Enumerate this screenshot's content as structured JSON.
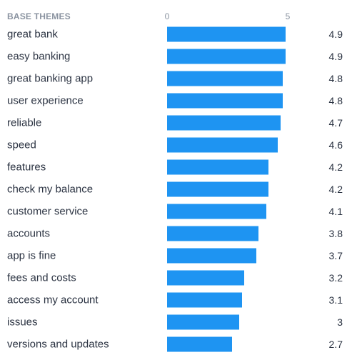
{
  "header": {
    "title": "BASE THEMES"
  },
  "colors": {
    "bar": "#1e94f2",
    "label": "#2b3342",
    "axis": "#8a93a0"
  },
  "chart_data": {
    "type": "bar",
    "orientation": "horizontal",
    "title": "BASE THEMES",
    "xlim": [
      0,
      5
    ],
    "ticks": [
      "0",
      "5"
    ],
    "categories": [
      "great bank",
      "easy banking",
      "great banking app",
      "user experience",
      "reliable",
      "speed",
      "features",
      "check my balance",
      "customer service",
      "accounts",
      "app is fine",
      "fees and costs",
      "access my account",
      "issues",
      "versions and updates"
    ],
    "values": [
      4.9,
      4.9,
      4.8,
      4.8,
      4.7,
      4.6,
      4.2,
      4.2,
      4.1,
      3.8,
      3.7,
      3.2,
      3.1,
      3,
      2.7
    ],
    "value_labels": [
      "4.9",
      "4.9",
      "4.8",
      "4.8",
      "4.7",
      "4.6",
      "4.2",
      "4.2",
      "4.1",
      "3.8",
      "3.7",
      "3.2",
      "3.1",
      "3",
      "2.7"
    ],
    "grid": false,
    "legend": "none"
  }
}
